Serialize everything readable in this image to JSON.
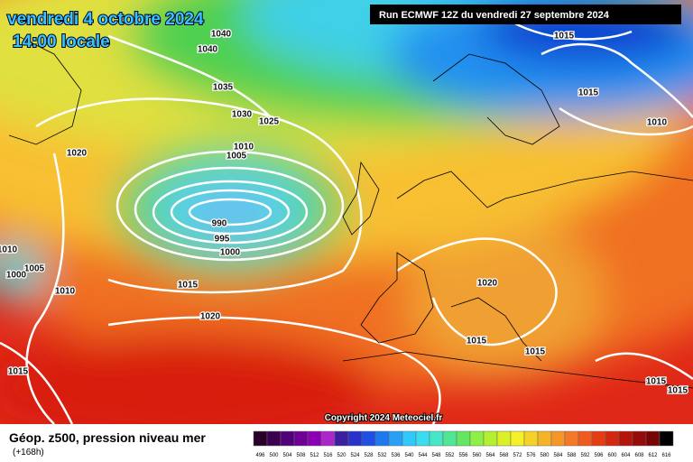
{
  "header": {
    "date": "vendredi 4 octobre 2024",
    "time": "14:00 locale",
    "run": "Run ECMWF 12Z du vendredi 27 septembre 2024"
  },
  "isobar_labels": [
    "1040",
    "1040",
    "1035",
    "1030",
    "1025",
    "1020",
    "1010",
    "1005",
    "990",
    "995",
    "1000",
    "1015",
    "1020",
    "1015",
    "1015",
    "1010",
    "1010",
    "1005",
    "1000",
    "1010",
    "1020",
    "1015",
    "1015",
    "1015",
    "1015",
    "1015"
  ],
  "copyright": "Copyright 2024 Meteociel.fr",
  "legend": {
    "title": "Géop. z500, pression niveau mer",
    "lead": "(+168h)",
    "scale": [
      496,
      500,
      504,
      508,
      512,
      516,
      520,
      524,
      528,
      532,
      536,
      540,
      544,
      548,
      552,
      556,
      560,
      564,
      568,
      572,
      576,
      580,
      584,
      588,
      592,
      596,
      600,
      604,
      608,
      612,
      616
    ]
  }
}
